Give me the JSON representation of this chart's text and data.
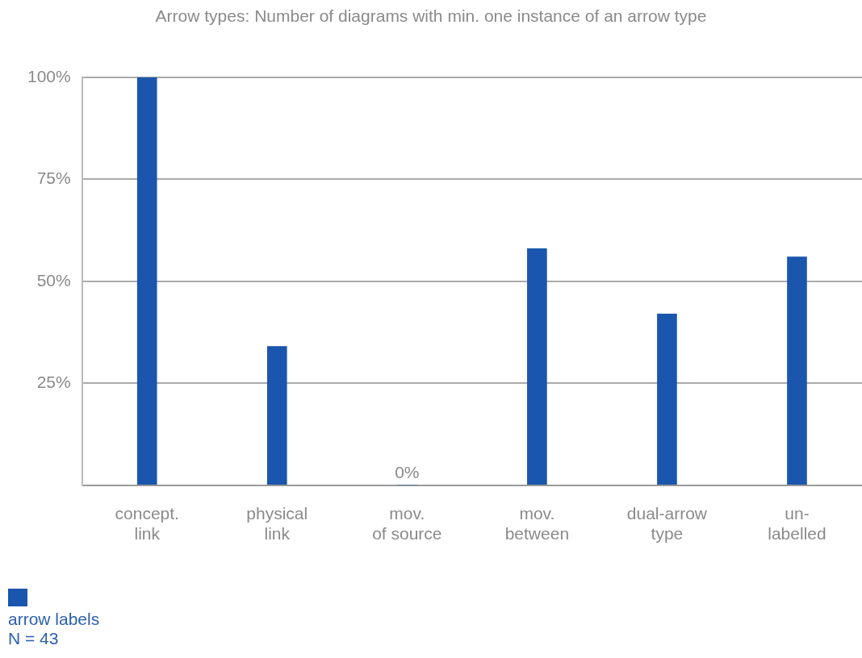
{
  "chart_data": {
    "type": "bar",
    "title": "Arrow types: Number of diagrams with min. one instance of an arrow type",
    "categories": [
      "concept.\nlink",
      "physical\nlink",
      "mov.\nof source",
      "mov.\nbetween",
      "dual-arrow\ntype",
      "un-\nlabelled"
    ],
    "series": [
      {
        "name": "arrow labels",
        "color": "#1a56ad",
        "values": [
          100,
          34,
          0,
          58,
          42,
          56
        ],
        "value_labels": [
          null,
          null,
          "0%",
          null,
          null,
          null
        ]
      }
    ],
    "ylim": [
      0,
      100
    ],
    "yticks": [
      {
        "value": 0,
        "label": null
      },
      {
        "value": 25,
        "label": "25%"
      },
      {
        "value": 50,
        "label": "50%"
      },
      {
        "value": 75,
        "label": "75%"
      },
      {
        "value": 100,
        "label": "100%"
      }
    ],
    "grid": "y",
    "legend": "bottom left",
    "annotations": [
      "N = 43"
    ]
  }
}
